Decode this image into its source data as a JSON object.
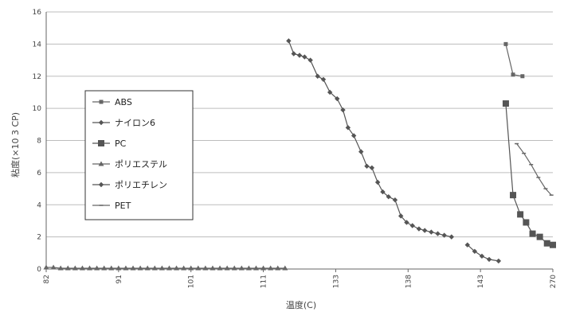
{
  "chart_data": {
    "type": "line",
    "title": "",
    "xlabel": "温度(C)",
    "ylabel": "粘度(×10 3 CP)",
    "x_ticks": [
      "82",
      "91",
      "101",
      "111",
      "133",
      "138",
      "143",
      "270"
    ],
    "y_ticks": [
      "0",
      "2",
      "4",
      "6",
      "8",
      "10",
      "12",
      "14",
      "16"
    ],
    "ylim": [
      0,
      16
    ],
    "grid": "horizontal",
    "legend_position": "left",
    "colors": {
      "ABS": "#666666",
      "ナイロン6": "#555555",
      "PC": "#555555",
      "ポリエステル": "#666666",
      "ポリエチレン": "#555555",
      "PET": "#666666"
    },
    "series": [
      {
        "name": "ABS",
        "marker": "square-small",
        "points": [
          [
            6.35,
            14.0
          ],
          [
            6.45,
            12.1
          ],
          [
            6.58,
            12.0
          ]
        ]
      },
      {
        "name": "ナイロン6",
        "marker": "diamond",
        "points": [
          [
            3.35,
            14.2
          ],
          [
            3.42,
            13.4
          ],
          [
            3.5,
            13.3
          ],
          [
            3.57,
            13.2
          ],
          [
            3.65,
            13.0
          ],
          [
            3.75,
            12.0
          ],
          [
            3.83,
            11.8
          ],
          [
            3.92,
            11.0
          ],
          [
            4.02,
            10.6
          ],
          [
            4.1,
            9.9
          ],
          [
            4.17,
            8.8
          ],
          [
            4.25,
            8.3
          ],
          [
            4.35,
            7.3
          ],
          [
            4.43,
            6.4
          ],
          [
            4.5,
            6.3
          ],
          [
            4.58,
            5.4
          ],
          [
            4.65,
            4.8
          ],
          [
            4.73,
            4.5
          ],
          [
            4.82,
            4.3
          ],
          [
            4.9,
            3.3
          ],
          [
            4.98,
            2.9
          ],
          [
            5.06,
            2.7
          ],
          [
            5.15,
            2.5
          ],
          [
            5.23,
            2.4
          ],
          [
            5.32,
            2.3
          ],
          [
            5.41,
            2.2
          ],
          [
            5.5,
            2.1
          ],
          [
            5.6,
            2.0
          ]
        ]
      },
      {
        "name": "PC",
        "marker": "square-large",
        "points": [
          [
            6.35,
            10.3
          ],
          [
            6.45,
            4.6
          ],
          [
            6.55,
            3.4
          ],
          [
            6.63,
            2.9
          ],
          [
            6.72,
            2.2
          ],
          [
            6.82,
            2.0
          ],
          [
            6.92,
            1.6
          ],
          [
            7.0,
            1.5
          ]
        ]
      },
      {
        "name": "ポリエステル",
        "marker": "triangle",
        "points": [
          [
            0.0,
            0.1
          ],
          [
            0.1,
            0.1
          ],
          [
            0.2,
            0.05
          ],
          [
            0.3,
            0.05
          ],
          [
            0.4,
            0.05
          ],
          [
            0.5,
            0.05
          ],
          [
            0.6,
            0.05
          ],
          [
            0.7,
            0.05
          ],
          [
            0.8,
            0.05
          ],
          [
            0.9,
            0.05
          ],
          [
            1.0,
            0.05
          ],
          [
            1.1,
            0.05
          ],
          [
            1.2,
            0.05
          ],
          [
            1.3,
            0.05
          ],
          [
            1.4,
            0.05
          ],
          [
            1.5,
            0.05
          ],
          [
            1.6,
            0.05
          ],
          [
            1.7,
            0.05
          ],
          [
            1.8,
            0.05
          ],
          [
            1.9,
            0.05
          ],
          [
            2.0,
            0.05
          ],
          [
            2.1,
            0.05
          ],
          [
            2.2,
            0.05
          ],
          [
            2.3,
            0.05
          ],
          [
            2.4,
            0.05
          ],
          [
            2.5,
            0.05
          ],
          [
            2.6,
            0.05
          ],
          [
            2.7,
            0.05
          ],
          [
            2.8,
            0.05
          ],
          [
            2.9,
            0.05
          ],
          [
            3.0,
            0.05
          ],
          [
            3.1,
            0.05
          ],
          [
            3.2,
            0.05
          ],
          [
            3.3,
            0.05
          ]
        ]
      },
      {
        "name": "ポリエチレン",
        "marker": "diamond",
        "points": [
          [
            5.82,
            1.5
          ],
          [
            5.92,
            1.1
          ],
          [
            6.02,
            0.8
          ],
          [
            6.12,
            0.6
          ],
          [
            6.25,
            0.5
          ]
        ]
      },
      {
        "name": "PET",
        "marker": "dash",
        "points": [
          [
            6.5,
            7.8
          ],
          [
            6.6,
            7.2
          ],
          [
            6.7,
            6.5
          ],
          [
            6.8,
            5.7
          ],
          [
            6.9,
            5.0
          ],
          [
            6.98,
            4.6
          ]
        ]
      }
    ]
  }
}
